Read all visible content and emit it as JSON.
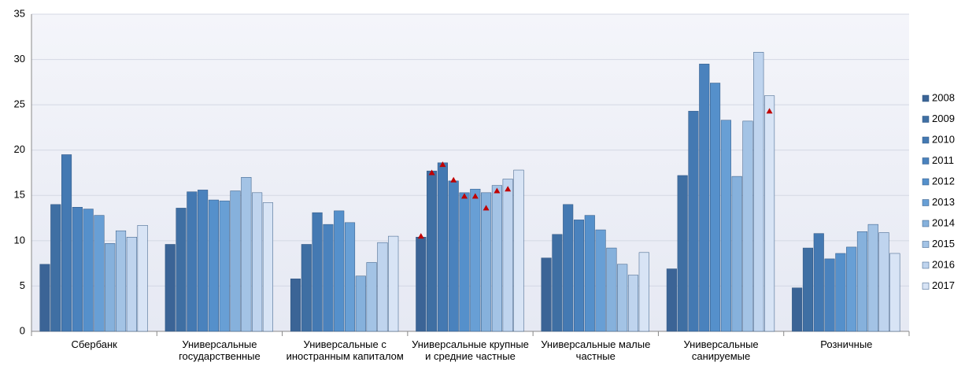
{
  "chart_data": {
    "type": "bar",
    "categories": [
      "Сбербанк",
      "Универсальные государственные",
      "Универсальные с иностранным капиталом",
      "Универсальные крупные и средние частные",
      "Универсальные малые частные",
      "Универсальные санируемые",
      "Розничные"
    ],
    "series": [
      {
        "name": "2008",
        "color": "#3b6496",
        "values": [
          7.4,
          9.6,
          5.8,
          10.4,
          8.1,
          6.9,
          4.8
        ]
      },
      {
        "name": "2009",
        "color": "#3f6fa3",
        "values": [
          14.0,
          13.6,
          9.6,
          17.7,
          10.7,
          17.2,
          9.2
        ]
      },
      {
        "name": "2010",
        "color": "#4479b2",
        "values": [
          19.5,
          15.4,
          13.1,
          18.6,
          14.0,
          24.3,
          10.8
        ]
      },
      {
        "name": "2011",
        "color": "#4a82bd",
        "values": [
          13.7,
          15.6,
          11.8,
          16.6,
          12.3,
          29.5,
          8.0
        ]
      },
      {
        "name": "2012",
        "color": "#5590cb",
        "values": [
          13.5,
          14.5,
          13.3,
          15.3,
          12.8,
          27.4,
          8.6
        ]
      },
      {
        "name": "2013",
        "color": "#689fd5",
        "values": [
          12.8,
          14.4,
          12.0,
          15.7,
          11.2,
          23.3,
          9.3
        ]
      },
      {
        "name": "2014",
        "color": "#86b1dc",
        "values": [
          9.7,
          15.5,
          6.1,
          15.3,
          9.2,
          17.1,
          11.0
        ]
      },
      {
        "name": "2015",
        "color": "#a3c3e5",
        "values": [
          11.1,
          17.0,
          7.6,
          16.1,
          7.4,
          23.2,
          11.8
        ]
      },
      {
        "name": "2016",
        "color": "#bfd4ee",
        "values": [
          10.4,
          15.3,
          9.8,
          16.8,
          6.2,
          30.8,
          10.9
        ]
      },
      {
        "name": "2017",
        "color": "#d8e4f5",
        "values": [
          11.7,
          14.2,
          10.5,
          17.8,
          8.7,
          26.0,
          8.6
        ]
      }
    ],
    "markers": {
      "color": "#c00000",
      "values": [
        [
          null,
          null,
          null,
          10.5,
          null,
          null,
          null
        ],
        [
          null,
          null,
          null,
          17.5,
          null,
          null,
          null
        ],
        [
          null,
          null,
          null,
          18.4,
          null,
          null,
          null
        ],
        [
          null,
          null,
          null,
          16.7,
          null,
          null,
          null
        ],
        [
          null,
          null,
          null,
          14.9,
          null,
          null,
          null
        ],
        [
          null,
          null,
          null,
          14.9,
          null,
          null,
          null
        ],
        [
          null,
          null,
          null,
          13.6,
          null,
          null,
          null
        ],
        [
          null,
          null,
          null,
          15.5,
          null,
          null,
          null
        ],
        [
          null,
          null,
          null,
          15.7,
          null,
          null,
          null
        ],
        [
          null,
          null,
          null,
          null,
          null,
          24.3,
          null
        ]
      ]
    },
    "ylim": [
      0,
      35
    ],
    "yticks": [
      0,
      5,
      10,
      15,
      20,
      25,
      30,
      35
    ],
    "grid": true,
    "legend": "right"
  }
}
